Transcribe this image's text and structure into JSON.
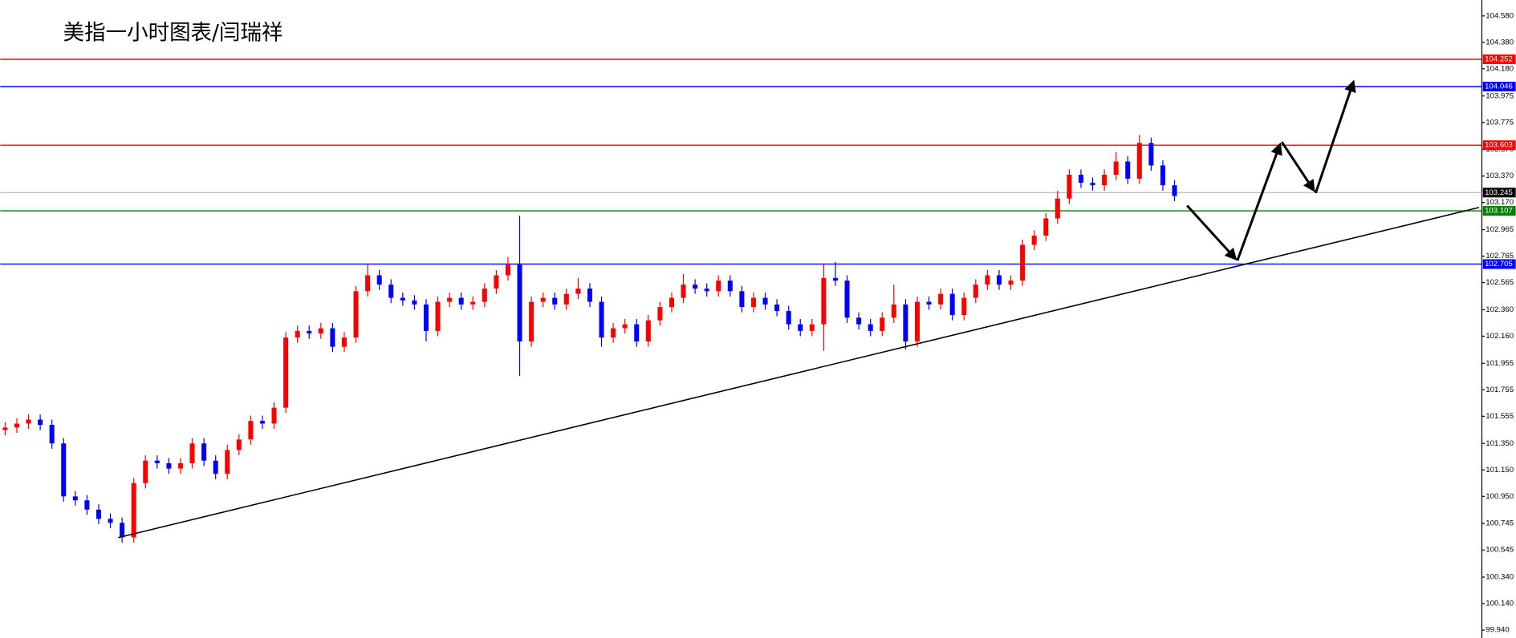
{
  "chart_data": {
    "type": "candlestick",
    "title": "美指一小时图表/闫瑞祥",
    "up_color": "#ff0000",
    "down_color": "#0000ff",
    "ylim": [
      99.88,
      104.7
    ],
    "yticks": [
      {
        "value": 104.58,
        "label": "104.580"
      },
      {
        "value": 104.38,
        "label": "104.380"
      },
      {
        "value": 104.18,
        "label": "104.180"
      },
      103.975,
      103.775,
      {
        "value": 103.57,
        "label": "103.570"
      },
      {
        "value": 103.37,
        "label": "103.370"
      },
      {
        "value": 103.17,
        "label": "103.170"
      },
      102.965,
      102.765,
      102.565,
      {
        "value": 102.36,
        "label": "102.360"
      },
      {
        "value": 102.16,
        "label": "102.160"
      },
      101.955,
      101.755,
      101.555,
      {
        "value": 101.35,
        "label": "101.350"
      },
      {
        "value": 101.15,
        "label": "101.150"
      },
      {
        "value": 100.95,
        "label": "100.950"
      },
      100.745,
      100.545,
      {
        "value": 100.34,
        "label": "100.340"
      },
      {
        "value": 100.14,
        "label": "100.140"
      },
      {
        "value": 99.94,
        "label": "99.940"
      }
    ],
    "levels": [
      {
        "value": 104.252,
        "line_color": "#ff0000",
        "box_color": "#ff0000"
      },
      {
        "value": 104.046,
        "line_color": "#0000ff",
        "box_color": "#0000ff"
      },
      {
        "value": 103.603,
        "line_color": "#ff0000",
        "box_color": "#ff0000"
      },
      {
        "value": 103.245,
        "line_color": "#c0c0c0",
        "box_color": "#000000"
      },
      {
        "value": 103.107,
        "line_color": "#008000",
        "box_color": "#008000"
      },
      {
        "value": 102.705,
        "line_color": "#0000ff",
        "box_color": "#0000ff"
      }
    ],
    "candles": [
      [
        101.45,
        101.51,
        101.41,
        101.47
      ],
      [
        101.47,
        101.54,
        101.43,
        101.5
      ],
      [
        101.5,
        101.57,
        101.46,
        101.53
      ],
      [
        101.53,
        101.57,
        101.45,
        101.49
      ],
      [
        101.49,
        101.53,
        101.31,
        101.35
      ],
      [
        101.35,
        101.39,
        100.91,
        100.95
      ],
      [
        100.95,
        100.99,
        100.88,
        100.92
      ],
      [
        100.92,
        100.96,
        100.81,
        100.85
      ],
      [
        100.85,
        100.89,
        100.74,
        100.78
      ],
      [
        100.78,
        100.82,
        100.71,
        100.75
      ],
      [
        100.75,
        100.79,
        100.6,
        100.64
      ],
      [
        100.64,
        101.09,
        100.6,
        101.05
      ],
      [
        101.05,
        101.26,
        101.01,
        101.22
      ],
      [
        101.22,
        101.26,
        101.16,
        101.2
      ],
      [
        101.2,
        101.24,
        101.12,
        101.16
      ],
      [
        101.16,
        101.24,
        101.12,
        101.2
      ],
      [
        101.2,
        101.39,
        101.16,
        101.35
      ],
      [
        101.35,
        101.39,
        101.18,
        101.22
      ],
      [
        101.22,
        101.26,
        101.08,
        101.12
      ],
      [
        101.12,
        101.34,
        101.08,
        101.3
      ],
      [
        101.3,
        101.42,
        101.26,
        101.38
      ],
      [
        101.38,
        101.56,
        101.34,
        101.52
      ],
      [
        101.52,
        101.56,
        101.46,
        101.5
      ],
      [
        101.5,
        101.66,
        101.46,
        101.62
      ],
      [
        101.62,
        102.19,
        101.58,
        102.15
      ],
      [
        102.15,
        102.24,
        102.11,
        102.2
      ],
      [
        102.2,
        102.24,
        102.14,
        102.18
      ],
      [
        102.18,
        102.26,
        102.14,
        102.22
      ],
      [
        102.22,
        102.26,
        102.04,
        102.08
      ],
      [
        102.08,
        102.19,
        102.04,
        102.15
      ],
      [
        102.15,
        102.54,
        102.11,
        102.5
      ],
      [
        102.5,
        102.7,
        102.46,
        102.62
      ],
      [
        102.62,
        102.66,
        102.51,
        102.55
      ],
      [
        102.55,
        102.59,
        102.41,
        102.45
      ],
      [
        102.45,
        102.49,
        102.39,
        102.43
      ],
      [
        102.43,
        102.47,
        102.36,
        102.4
      ],
      [
        102.4,
        102.44,
        102.12,
        102.2
      ],
      [
        102.2,
        102.46,
        102.16,
        102.42
      ],
      [
        102.42,
        102.49,
        102.38,
        102.45
      ],
      [
        102.45,
        102.49,
        102.36,
        102.4
      ],
      [
        102.4,
        102.46,
        102.36,
        102.42
      ],
      [
        102.42,
        102.56,
        102.38,
        102.52
      ],
      [
        102.52,
        102.66,
        102.48,
        102.62
      ],
      [
        102.62,
        102.76,
        102.58,
        102.7
      ],
      [
        102.7,
        103.07,
        101.86,
        102.12
      ],
      [
        102.12,
        102.46,
        102.08,
        102.42
      ],
      [
        102.42,
        102.49,
        102.38,
        102.45
      ],
      [
        102.45,
        102.49,
        102.36,
        102.4
      ],
      [
        102.4,
        102.52,
        102.36,
        102.48
      ],
      [
        102.48,
        102.6,
        102.44,
        102.52
      ],
      [
        102.52,
        102.56,
        102.38,
        102.42
      ],
      [
        102.42,
        102.46,
        102.08,
        102.15
      ],
      [
        102.15,
        102.26,
        102.11,
        102.22
      ],
      [
        102.22,
        102.29,
        102.18,
        102.25
      ],
      [
        102.25,
        102.29,
        102.08,
        102.12
      ],
      [
        102.12,
        102.32,
        102.08,
        102.28
      ],
      [
        102.28,
        102.42,
        102.24,
        102.38
      ],
      [
        102.38,
        102.49,
        102.34,
        102.45
      ],
      [
        102.45,
        102.63,
        102.41,
        102.55
      ],
      [
        102.55,
        102.59,
        102.48,
        102.52
      ],
      [
        102.52,
        102.56,
        102.46,
        102.5
      ],
      [
        102.5,
        102.62,
        102.46,
        102.58
      ],
      [
        102.58,
        102.62,
        102.46,
        102.5
      ],
      [
        102.5,
        102.54,
        102.34,
        102.38
      ],
      [
        102.38,
        102.49,
        102.34,
        102.45
      ],
      [
        102.45,
        102.49,
        102.36,
        102.4
      ],
      [
        102.4,
        102.44,
        102.31,
        102.35
      ],
      [
        102.35,
        102.39,
        102.21,
        102.25
      ],
      [
        102.25,
        102.29,
        102.16,
        102.2
      ],
      [
        102.2,
        102.29,
        102.16,
        102.25
      ],
      [
        102.25,
        102.7,
        102.05,
        102.6
      ],
      [
        102.6,
        102.72,
        102.54,
        102.58
      ],
      [
        102.58,
        102.62,
        102.26,
        102.3
      ],
      [
        102.3,
        102.34,
        102.21,
        102.25
      ],
      [
        102.25,
        102.29,
        102.16,
        102.2
      ],
      [
        102.2,
        102.34,
        102.16,
        102.3
      ],
      [
        102.3,
        102.55,
        102.26,
        102.4
      ],
      [
        102.4,
        102.44,
        102.06,
        102.12
      ],
      [
        102.12,
        102.46,
        102.08,
        102.42
      ],
      [
        102.42,
        102.46,
        102.36,
        102.4
      ],
      [
        102.4,
        102.52,
        102.36,
        102.48
      ],
      [
        102.48,
        102.52,
        102.28,
        102.32
      ],
      [
        102.32,
        102.49,
        102.28,
        102.45
      ],
      [
        102.45,
        102.59,
        102.41,
        102.55
      ],
      [
        102.55,
        102.66,
        102.51,
        102.62
      ],
      [
        102.62,
        102.66,
        102.51,
        102.55
      ],
      [
        102.55,
        102.62,
        102.51,
        102.58
      ],
      [
        102.58,
        102.89,
        102.54,
        102.85
      ],
      [
        102.85,
        102.96,
        102.81,
        102.92
      ],
      [
        102.92,
        103.09,
        102.88,
        103.05
      ],
      [
        103.05,
        103.26,
        103.01,
        103.2
      ],
      [
        103.2,
        103.42,
        103.16,
        103.38
      ],
      [
        103.38,
        103.42,
        103.28,
        103.32
      ],
      [
        103.32,
        103.36,
        103.26,
        103.3
      ],
      [
        103.3,
        103.42,
        103.26,
        103.38
      ],
      [
        103.38,
        103.55,
        103.34,
        103.48
      ],
      [
        103.48,
        103.52,
        103.31,
        103.35
      ],
      [
        103.35,
        103.68,
        103.31,
        103.62
      ],
      [
        103.62,
        103.66,
        103.41,
        103.45
      ],
      [
        103.45,
        103.49,
        103.26,
        103.3
      ],
      [
        103.3,
        103.34,
        103.18,
        103.22
      ]
    ]
  }
}
